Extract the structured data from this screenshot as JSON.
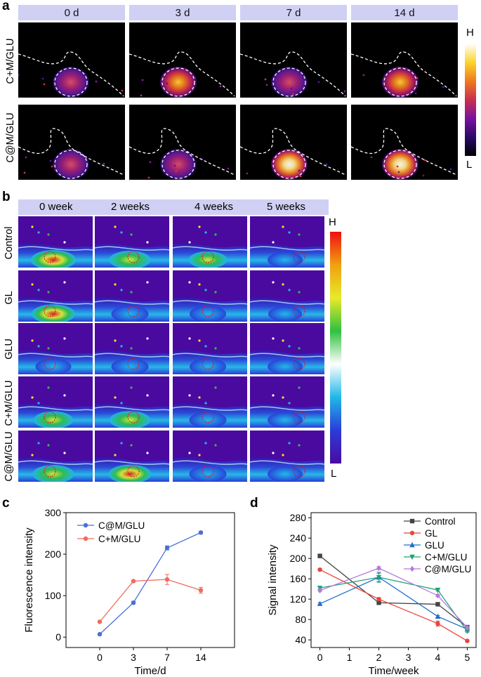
{
  "panel_a": {
    "letter": "a",
    "time_headers": [
      "0 d",
      "3 d",
      "7 d",
      "14 d"
    ],
    "row_labels": [
      "C+M/GLU",
      "C@M/GLU"
    ],
    "colorbar": {
      "high": "H",
      "low": "L",
      "colors": [
        "#000000",
        "#2a0a66",
        "#7a12a0",
        "#c92f4f",
        "#f07a1c",
        "#fbd52d",
        "#ffffff"
      ]
    }
  },
  "panel_b": {
    "letter": "b",
    "time_headers": [
      "0 week",
      "2 weeks",
      "4 weeks",
      "5 weeks"
    ],
    "row_labels": [
      "Control",
      "GL",
      "GLU",
      "C+M/GLU",
      "C@M/GLU"
    ],
    "colorbar": {
      "high": "H",
      "low": "L",
      "colors": [
        "#f01010",
        "#f0a010",
        "#e8ea2a",
        "#30c040",
        "#ffffff",
        "#20b8e8",
        "#2a3cd8",
        "#4a0aa0"
      ]
    }
  },
  "chart_data": [
    {
      "panel": "c",
      "type": "line",
      "ylabel": "Fluorescence intensity",
      "xlabel": "Time/d",
      "categories": [
        "0",
        "3",
        "7",
        "14"
      ],
      "yticks": [
        "0",
        "100",
        "200",
        "300"
      ],
      "ylim": [
        -25,
        300
      ],
      "series": [
        {
          "name": "C@M/GLU",
          "color": "#4a6fd8",
          "values": [
            7,
            83,
            215,
            252
          ],
          "errors": [
            2,
            3,
            5,
            3
          ]
        },
        {
          "name": "C+M/GLU",
          "color": "#f06a5e",
          "values": [
            37,
            135,
            139,
            113
          ],
          "errors": [
            2,
            2,
            12,
            7
          ]
        }
      ]
    },
    {
      "panel": "d",
      "type": "line",
      "ylabel": "Signal intensity",
      "xlabel": "Time/week",
      "x": [
        0,
        2,
        4,
        5
      ],
      "xticks": [
        "0",
        "1",
        "2",
        "3",
        "4",
        "5"
      ],
      "yticks": [
        "40",
        "80",
        "120",
        "160",
        "200",
        "240",
        "280"
      ],
      "ylim": [
        25,
        290
      ],
      "xlim": [
        -0.3,
        5.3
      ],
      "series": [
        {
          "name": "Control",
          "color": "#444444",
          "marker": "square",
          "values": [
            205,
            113,
            110,
            65
          ],
          "errors": [
            2,
            3,
            2,
            2
          ]
        },
        {
          "name": "GL",
          "color": "#e8453c",
          "marker": "circle",
          "values": [
            178,
            120,
            72,
            38
          ],
          "errors": [
            2,
            3,
            5,
            2
          ]
        },
        {
          "name": "GLU",
          "color": "#1f6fcc",
          "marker": "triangle-up",
          "values": [
            111,
            163,
            86,
            61
          ],
          "errors": [
            2,
            8,
            2,
            2
          ]
        },
        {
          "name": "C+M/GLU",
          "color": "#23a07a",
          "marker": "triangle-down",
          "values": [
            142,
            163,
            138,
            57
          ],
          "errors": [
            2,
            10,
            2,
            2
          ]
        },
        {
          "name": "C@M/GLU",
          "color": "#b57ae0",
          "marker": "diamond",
          "values": [
            137,
            181,
            127,
            64
          ],
          "errors": [
            2,
            3,
            2,
            2
          ]
        }
      ]
    }
  ]
}
